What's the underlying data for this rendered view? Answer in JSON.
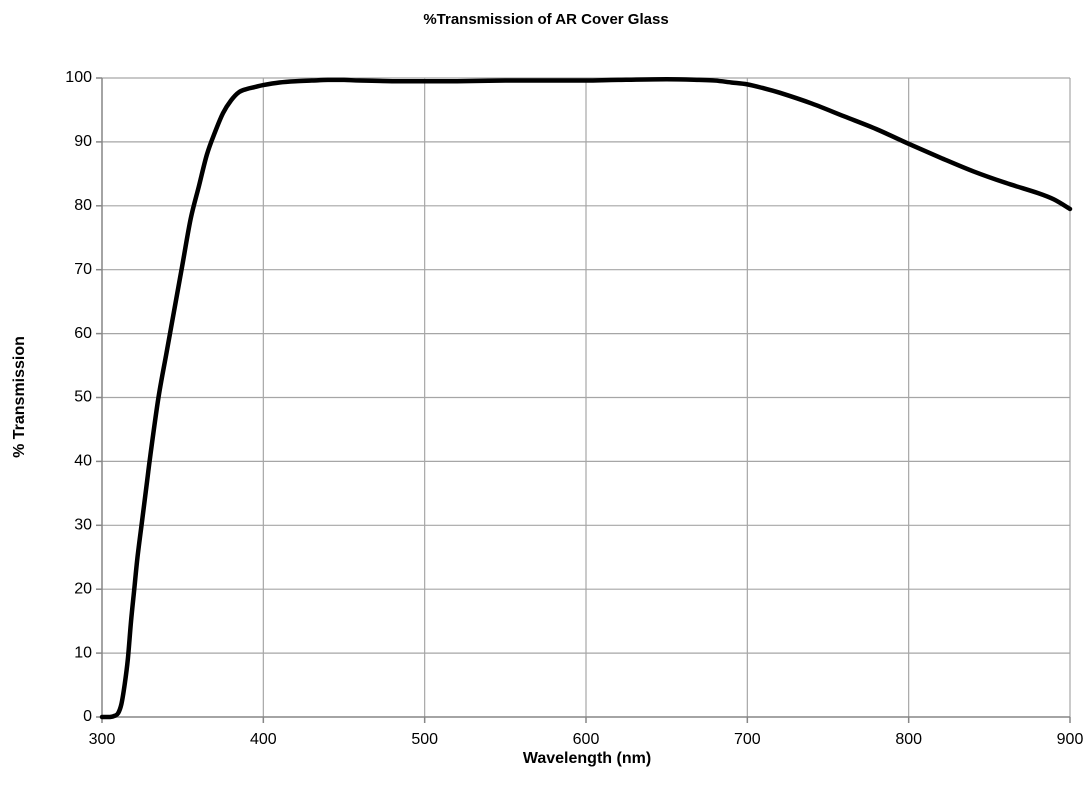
{
  "chart_data": {
    "type": "line",
    "title": "%Transmission of AR Cover Glass",
    "xlabel": "Wavelength (nm)",
    "ylabel": "% Transmission",
    "xlim": [
      300,
      900
    ],
    "ylim": [
      0,
      100
    ],
    "x_ticks": [
      300,
      400,
      500,
      600,
      700,
      800,
      900
    ],
    "y_ticks": [
      0,
      10,
      20,
      30,
      40,
      50,
      60,
      70,
      80,
      90,
      100
    ],
    "grid": true,
    "legend": "none",
    "line_color": "#000000",
    "grid_color": "#a6a6a6",
    "series": [
      {
        "x": [
          300,
          305,
          308,
          310,
          312,
          314,
          316,
          318,
          320,
          322,
          325,
          328,
          330,
          335,
          340,
          345,
          350,
          355,
          360,
          365,
          370,
          375,
          380,
          385,
          390,
          395,
          400,
          410,
          420,
          430,
          440,
          450,
          460,
          480,
          500,
          520,
          550,
          580,
          600,
          620,
          650,
          670,
          680,
          690,
          700,
          710,
          720,
          740,
          760,
          780,
          800,
          820,
          840,
          860,
          880,
          890,
          900
        ],
        "y": [
          0,
          0,
          0.2,
          0.6,
          2,
          5,
          9,
          15,
          20,
          25,
          31,
          37,
          41,
          50,
          57,
          64,
          71,
          78,
          83,
          88,
          91.5,
          94.5,
          96.5,
          97.8,
          98.3,
          98.6,
          98.9,
          99.3,
          99.5,
          99.6,
          99.7,
          99.7,
          99.6,
          99.5,
          99.5,
          99.5,
          99.6,
          99.6,
          99.6,
          99.7,
          99.8,
          99.7,
          99.6,
          99.3,
          99,
          98.4,
          97.7,
          96,
          94,
          92,
          89.7,
          87.5,
          85.4,
          83.6,
          82,
          81,
          79.5
        ]
      }
    ]
  }
}
